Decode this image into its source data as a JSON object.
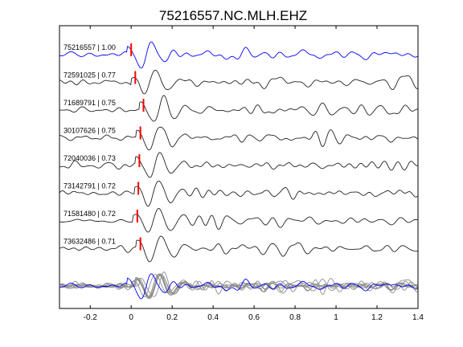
{
  "chart_data": {
    "type": "line",
    "title": "75216557.NC.MLH.EHZ",
    "xlabel": "",
    "ylabel": "",
    "xlim": [
      -0.35,
      1.4
    ],
    "xticks": [
      -0.2,
      0,
      0.2,
      0.4,
      0.6,
      0.8,
      1,
      1.2,
      1.4
    ],
    "xtick_labels": [
      "-0.2",
      "0",
      "0.2",
      "0.4",
      "0.6",
      "0.8",
      "1",
      "1.2",
      "1.4"
    ],
    "colors": {
      "reference": "#0000ff",
      "trace": "#222222",
      "stack": "#8c8c8c",
      "pick": "#ff0000"
    },
    "traces": [
      {
        "label": "75216557 | 1.00",
        "event_id": "75216557",
        "correlation": 1.0,
        "pick_time": 0.0,
        "reference": true
      },
      {
        "label": "72591025 | 0.77",
        "event_id": "72591025",
        "correlation": 0.77,
        "pick_time": 0.02,
        "reference": false
      },
      {
        "label": "71689791 | 0.75",
        "event_id": "71689791",
        "correlation": 0.75,
        "pick_time": 0.06,
        "reference": false
      },
      {
        "label": "30107626 | 0.75",
        "event_id": "30107626",
        "correlation": 0.75,
        "pick_time": 0.045,
        "reference": false
      },
      {
        "label": "72040036 | 0.73",
        "event_id": "72040036",
        "correlation": 0.73,
        "pick_time": 0.04,
        "reference": false
      },
      {
        "label": "73142791 | 0.72",
        "event_id": "73142791",
        "correlation": 0.72,
        "pick_time": 0.035,
        "reference": false
      },
      {
        "label": "71581480 | 0.72",
        "event_id": "71581480",
        "correlation": 0.72,
        "pick_time": 0.03,
        "reference": false
      },
      {
        "label": "73632486 | 0.71",
        "event_id": "73632486",
        "correlation": 0.71,
        "pick_time": 0.045,
        "reference": false
      }
    ]
  }
}
